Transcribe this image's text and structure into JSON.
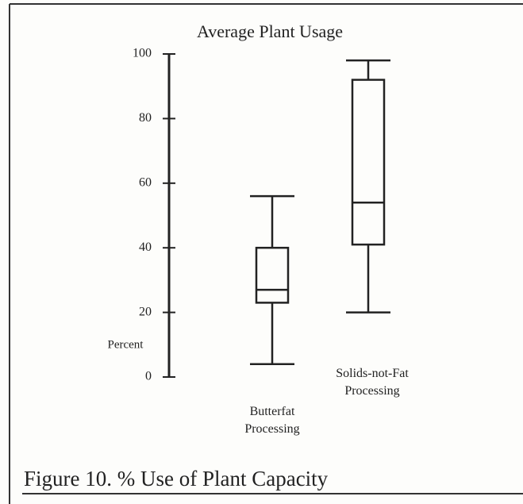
{
  "chart_data": {
    "type": "box",
    "title": "Average Plant Usage",
    "y_label": "Percent",
    "caption": "Figure 10.  % Use of Plant Capacity",
    "categories": [
      "Butterfat Processing",
      "Solids-not-Fat Processing"
    ],
    "boxes": [
      {
        "min": 4,
        "q1": 23,
        "median": 27,
        "q3": 40,
        "max": 56
      },
      {
        "min": 20,
        "q1": 41,
        "median": 54,
        "q3": 92,
        "max": 98
      }
    ],
    "color": "#222222",
    "ylim": [
      0,
      100
    ],
    "yticks": [
      0,
      20,
      40,
      60,
      80,
      100
    ],
    "grid": false
  }
}
